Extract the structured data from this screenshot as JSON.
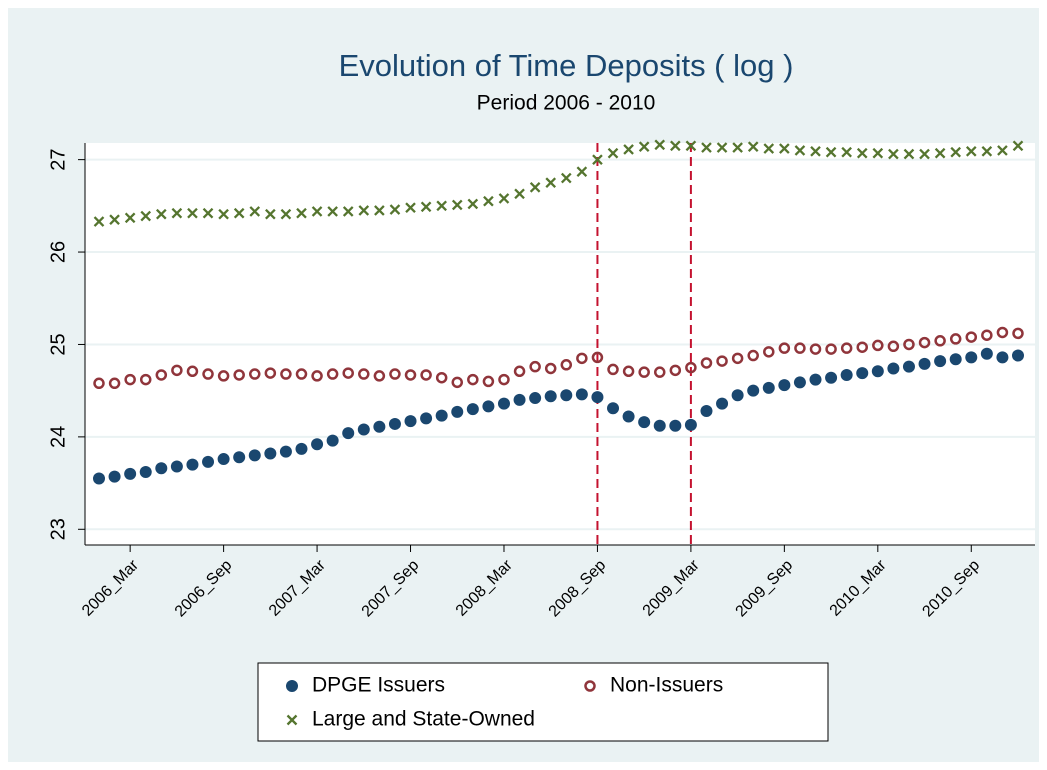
{
  "chart_data": {
    "type": "scatter",
    "title": "Evolution of Time Deposits ( log )",
    "subtitle": "Period 2006 - 2010",
    "categories": [
      null,
      null,
      "2006_Mar",
      null,
      null,
      null,
      null,
      null,
      "2006_Sep",
      null,
      null,
      null,
      null,
      null,
      "2007_Mar",
      null,
      null,
      null,
      null,
      null,
      "2007_Sep",
      null,
      null,
      null,
      null,
      null,
      "2008_Mar",
      null,
      null,
      null,
      null,
      null,
      "2008_Sep",
      null,
      null,
      null,
      null,
      null,
      "2009_Mar",
      null,
      null,
      null,
      null,
      null,
      "2009_Sep",
      null,
      null,
      null,
      null,
      null,
      "2010_Mar",
      null,
      null,
      null,
      null,
      null,
      "2010_Sep",
      null,
      null,
      null
    ],
    "series": [
      {
        "name": "DPGE Issuers",
        "color": "#1a476f",
        "marker": "circle",
        "values": [
          23.55,
          23.57,
          23.6,
          23.62,
          23.66,
          23.68,
          23.7,
          23.73,
          23.76,
          23.78,
          23.8,
          23.82,
          23.84,
          23.87,
          23.92,
          23.96,
          24.04,
          24.08,
          24.11,
          24.14,
          24.17,
          24.2,
          24.23,
          24.27,
          24.3,
          24.33,
          24.36,
          24.4,
          24.42,
          24.44,
          24.45,
          24.46,
          24.43,
          24.31,
          24.22,
          24.16,
          24.12,
          24.12,
          24.13,
          24.28,
          24.36,
          24.45,
          24.5,
          24.53,
          24.56,
          24.59,
          24.62,
          24.64,
          24.67,
          24.69,
          24.71,
          24.74,
          24.76,
          24.79,
          24.82,
          24.84,
          24.86,
          24.9,
          24.86,
          24.88
        ]
      },
      {
        "name": "Non-Issuers",
        "color": "#90353b",
        "marker": "hollow-circle",
        "values": [
          24.58,
          24.58,
          24.62,
          24.62,
          24.67,
          24.72,
          24.71,
          24.68,
          24.66,
          24.67,
          24.68,
          24.69,
          24.68,
          24.68,
          24.66,
          24.68,
          24.69,
          24.68,
          24.66,
          24.68,
          24.67,
          24.67,
          24.64,
          24.59,
          24.62,
          24.6,
          24.62,
          24.71,
          24.76,
          24.74,
          24.78,
          24.85,
          24.86,
          24.73,
          24.71,
          24.7,
          24.7,
          24.72,
          24.75,
          24.8,
          24.82,
          24.85,
          24.88,
          24.92,
          24.96,
          24.96,
          24.95,
          24.95,
          24.96,
          24.97,
          24.99,
          24.98,
          25.0,
          25.02,
          25.04,
          25.06,
          25.08,
          25.1,
          25.13,
          25.12
        ]
      },
      {
        "name": "Large and State-Owned",
        "color": "#55752f",
        "marker": "x",
        "values": [
          26.33,
          26.35,
          26.37,
          26.39,
          26.41,
          26.42,
          26.42,
          26.42,
          26.41,
          26.42,
          26.44,
          26.41,
          26.41,
          26.42,
          26.44,
          26.44,
          26.44,
          26.45,
          26.45,
          26.46,
          26.48,
          26.49,
          26.5,
          26.51,
          26.52,
          26.55,
          26.58,
          26.63,
          26.7,
          26.75,
          26.8,
          26.87,
          27.0,
          27.07,
          27.11,
          27.14,
          27.16,
          27.15,
          27.15,
          27.13,
          27.13,
          27.13,
          27.14,
          27.12,
          27.12,
          27.1,
          27.09,
          27.08,
          27.08,
          27.07,
          27.07,
          27.06,
          27.06,
          27.06,
          27.07,
          27.08,
          27.09,
          27.09,
          27.1,
          27.15
        ]
      }
    ],
    "reference_lines": [
      32,
      38
    ],
    "reference_line_color": "#c4122f",
    "ylim": [
      22.83,
      27.18
    ],
    "yticks": [
      23,
      24,
      25,
      26,
      27
    ],
    "grid": true,
    "legend": "bottom"
  }
}
